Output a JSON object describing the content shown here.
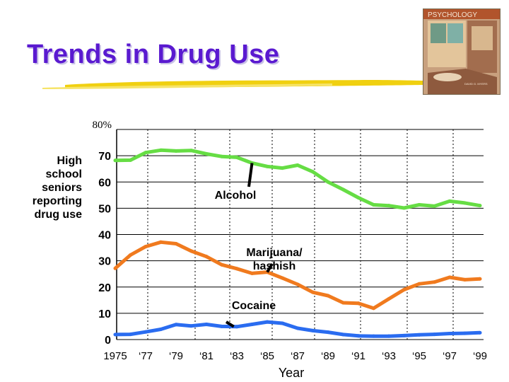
{
  "page": {
    "title": "Trends in Drug Use"
  },
  "book_cover": {
    "title": "PSYCHOLOGY",
    "author": "DAVID G. MYERS"
  },
  "colors": {
    "title": "#5a1ad0",
    "underline": "#f0d010",
    "alcohol": "#66dd44",
    "marijuana": "#f07a1e",
    "cocaine": "#2a6cf0",
    "grid": "#000000"
  },
  "chart_data": {
    "type": "line",
    "title": "",
    "xlabel": "Year",
    "ylabel": "High school seniors reporting drug use",
    "ylabel_lines": [
      "High school",
      "seniors",
      "reporting",
      "drug use"
    ],
    "ylim": [
      0,
      80
    ],
    "xlim": [
      1975,
      1999
    ],
    "grid": true,
    "y_ticks": [
      {
        "value": 0,
        "label": "0"
      },
      {
        "value": 10,
        "label": "10"
      },
      {
        "value": 20,
        "label": "20"
      },
      {
        "value": 30,
        "label": "30"
      },
      {
        "value": 40,
        "label": "40"
      },
      {
        "value": 50,
        "label": "50"
      },
      {
        "value": 60,
        "label": "60"
      },
      {
        "value": 70,
        "label": "70"
      },
      {
        "value": 80,
        "label": "80%"
      }
    ],
    "x_ticks": [
      {
        "value": 1975,
        "label": "1975"
      },
      {
        "value": 1977,
        "label": "‘77"
      },
      {
        "value": 1979,
        "label": "‘79"
      },
      {
        "value": 1981,
        "label": "‘81"
      },
      {
        "value": 1983,
        "label": "‘83"
      },
      {
        "value": 1985,
        "label": "‘85"
      },
      {
        "value": 1987,
        "label": "‘87"
      },
      {
        "value": 1989,
        "label": "‘89"
      },
      {
        "value": 1991,
        "label": "‘91"
      },
      {
        "value": 1993,
        "label": "‘93"
      },
      {
        "value": 1995,
        "label": "‘95"
      },
      {
        "value": 1997,
        "label": "‘97"
      },
      {
        "value": 1999,
        "label": "‘99"
      }
    ],
    "x": [
      1975,
      1976,
      1977,
      1978,
      1979,
      1980,
      1981,
      1982,
      1983,
      1984,
      1985,
      1986,
      1987,
      1988,
      1989,
      1990,
      1991,
      1992,
      1993,
      1994,
      1995,
      1996,
      1997,
      1998,
      1999
    ],
    "series": [
      {
        "name": "Alcohol",
        "key": "alcohol",
        "values": [
          68.2,
          68.3,
          71.2,
          72.1,
          71.8,
          72.0,
          70.7,
          69.7,
          69.4,
          67.2,
          65.9,
          65.3,
          66.4,
          63.9,
          60.0,
          57.1,
          54.0,
          51.3,
          51.0,
          50.1,
          51.3,
          50.8,
          52.7,
          52.0,
          51.0
        ]
      },
      {
        "name": "Marijuana/ hashish",
        "key": "marijuana",
        "values": [
          27.1,
          32.2,
          35.4,
          37.1,
          36.5,
          33.7,
          31.6,
          28.5,
          27.0,
          25.2,
          25.7,
          23.4,
          21.0,
          18.0,
          16.7,
          14.0,
          13.8,
          11.9,
          15.5,
          19.0,
          21.2,
          21.9,
          23.7,
          22.8,
          23.1
        ]
      },
      {
        "name": "Cocaine",
        "key": "cocaine",
        "values": [
          1.9,
          2.0,
          2.9,
          3.9,
          5.7,
          5.2,
          5.8,
          5.0,
          4.9,
          5.8,
          6.7,
          6.2,
          4.3,
          3.4,
          2.8,
          1.9,
          1.4,
          1.3,
          1.3,
          1.5,
          1.8,
          2.0,
          2.3,
          2.4,
          2.6
        ]
      }
    ],
    "annotations": [
      {
        "text": "Alcohol",
        "series": "alcohol",
        "point_x": 1984.0
      },
      {
        "text": "Marijuana/ hashish",
        "series": "marijuana",
        "point_x": 1985.0
      },
      {
        "text": "Cocaine",
        "series": "cocaine",
        "point_x": 1982.8
      }
    ]
  }
}
